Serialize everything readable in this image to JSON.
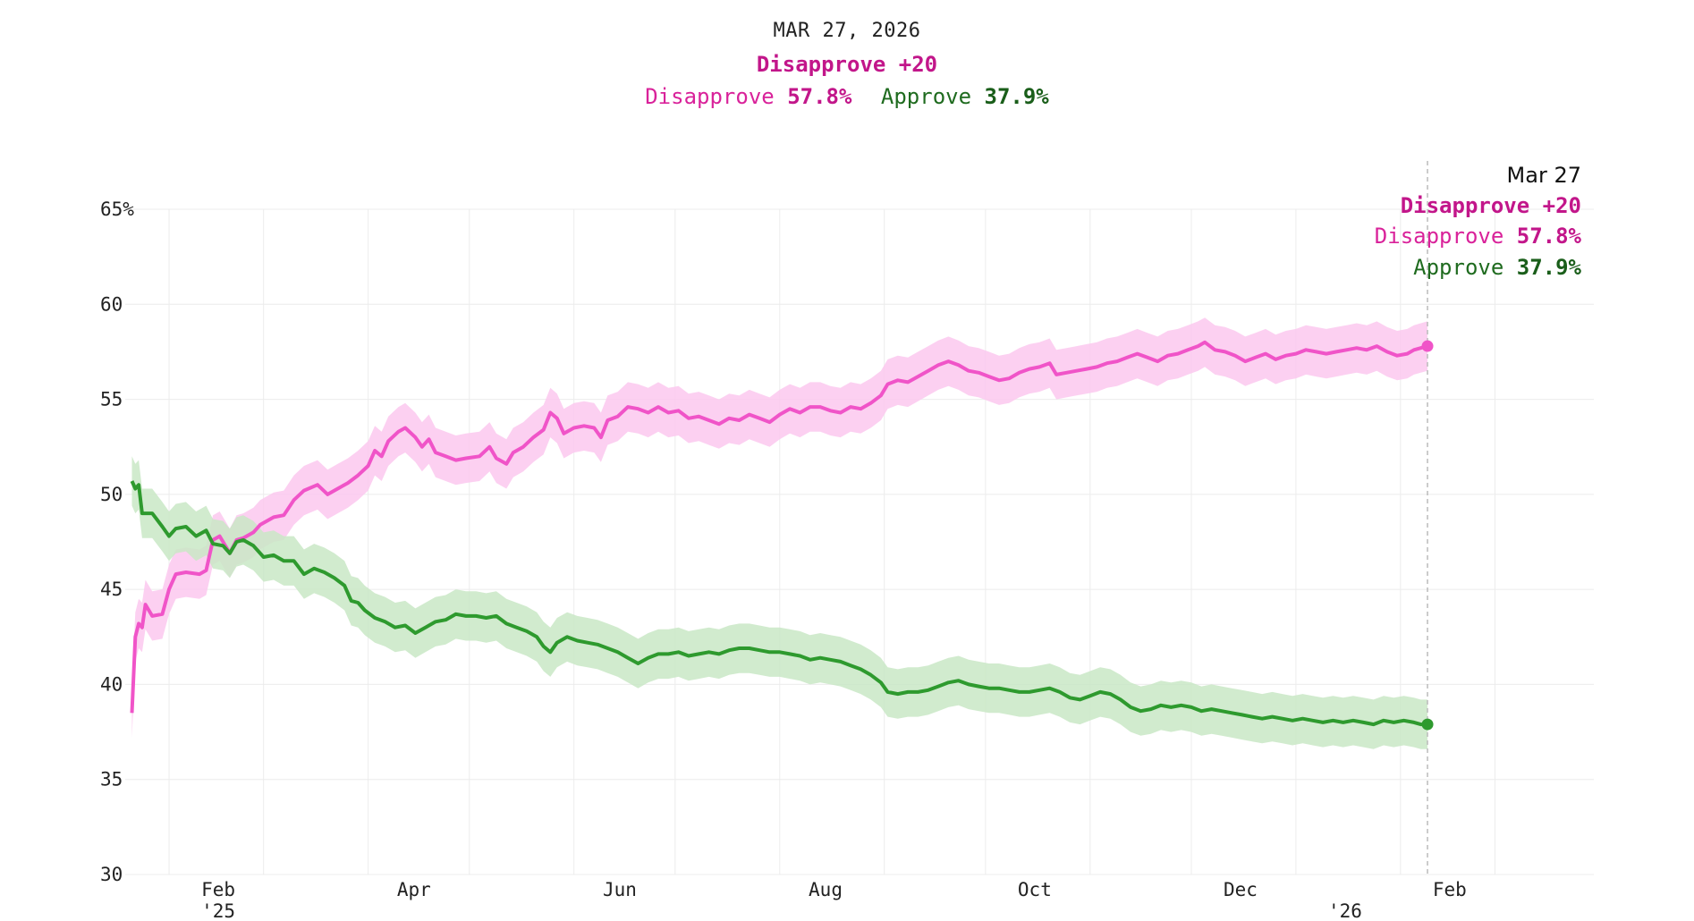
{
  "header": {
    "date": "MAR 27, 2026",
    "net": "Disapprove +20",
    "disapprove_label": "Disapprove",
    "disapprove_value": "57.8%",
    "approve_label": "Approve",
    "approve_value": "37.9%"
  },
  "tooltip": {
    "date": "Mar 27",
    "net": "Disapprove +20",
    "disapprove_label": "Disapprove",
    "disapprove_value": "57.8%",
    "approve_label": "Approve",
    "approve_value": "37.9%"
  },
  "colors": {
    "disapprove": "#f054c8",
    "disapprove_band": "#fbc8ee",
    "approve": "#2e9a2e",
    "approve_band": "#c9e8c5",
    "grid": "#ececec"
  },
  "chart_data": {
    "type": "line",
    "title": "",
    "xlabel": "",
    "ylabel": "",
    "ylim": [
      30,
      65
    ],
    "grid": true,
    "y_ticks": [
      {
        "value": 65,
        "label": "65%"
      },
      {
        "value": 60,
        "label": "60"
      },
      {
        "value": 55,
        "label": "55"
      },
      {
        "value": 50,
        "label": "50"
      },
      {
        "value": 45,
        "label": "45"
      },
      {
        "value": 40,
        "label": "40"
      },
      {
        "value": 35,
        "label": "35"
      },
      {
        "value": 30,
        "label": "30"
      }
    ],
    "x_ticks": [
      {
        "value": 13.0,
        "label": "Feb",
        "sublabel": "'25"
      },
      {
        "value": 71.0,
        "label": "Apr"
      },
      {
        "value": 132.0,
        "label": "Jun"
      },
      {
        "value": 193.0,
        "label": "Aug"
      },
      {
        "value": 255.0,
        "label": "Oct"
      },
      {
        "value": 316.0,
        "label": "Dec"
      },
      {
        "value": 347.0,
        "label": "",
        "sublabel": "'26"
      },
      {
        "value": 378.0,
        "label": "Feb"
      }
    ],
    "x_gridlines": [
      13,
      41,
      72,
      102,
      133,
      163,
      194,
      225,
      255,
      286,
      316,
      347,
      378,
      406
    ],
    "x_range": [
      0,
      430
    ],
    "series": [
      {
        "name": "Disapprove",
        "band_width": 1.3,
        "points": [
          [
            2,
            38.5
          ],
          [
            3,
            42.5
          ],
          [
            4,
            43.2
          ],
          [
            5,
            43.0
          ],
          [
            6,
            44.2
          ],
          [
            8,
            43.6
          ],
          [
            11,
            43.7
          ],
          [
            13,
            45.0
          ],
          [
            15,
            45.8
          ],
          [
            18,
            45.9
          ],
          [
            22,
            45.8
          ],
          [
            24,
            46.0
          ],
          [
            26,
            47.6
          ],
          [
            28,
            47.8
          ],
          [
            29,
            47.5
          ],
          [
            31,
            46.9
          ],
          [
            33,
            47.6
          ],
          [
            35,
            47.7
          ],
          [
            38,
            48.0
          ],
          [
            40,
            48.4
          ],
          [
            44,
            48.8
          ],
          [
            47,
            48.9
          ],
          [
            50,
            49.7
          ],
          [
            53,
            50.2
          ],
          [
            57,
            50.5
          ],
          [
            60,
            50.0
          ],
          [
            63,
            50.3
          ],
          [
            66,
            50.6
          ],
          [
            69,
            51.0
          ],
          [
            72,
            51.5
          ],
          [
            74,
            52.3
          ],
          [
            76,
            52.0
          ],
          [
            78,
            52.8
          ],
          [
            81,
            53.3
          ],
          [
            83,
            53.5
          ],
          [
            86,
            53.0
          ],
          [
            88,
            52.5
          ],
          [
            90,
            52.9
          ],
          [
            92,
            52.2
          ],
          [
            95,
            52.0
          ],
          [
            98,
            51.8
          ],
          [
            101,
            51.9
          ],
          [
            105,
            52.0
          ],
          [
            108,
            52.5
          ],
          [
            110,
            51.9
          ],
          [
            113,
            51.6
          ],
          [
            115,
            52.2
          ],
          [
            118,
            52.5
          ],
          [
            121,
            53.0
          ],
          [
            124,
            53.4
          ],
          [
            126,
            54.3
          ],
          [
            128,
            54.0
          ],
          [
            130,
            53.2
          ],
          [
            133,
            53.5
          ],
          [
            136,
            53.6
          ],
          [
            139,
            53.5
          ],
          [
            141,
            53.0
          ],
          [
            143,
            53.9
          ],
          [
            146,
            54.1
          ],
          [
            149,
            54.6
          ],
          [
            152,
            54.5
          ],
          [
            155,
            54.3
          ],
          [
            158,
            54.6
          ],
          [
            161,
            54.3
          ],
          [
            164,
            54.4
          ],
          [
            167,
            54.0
          ],
          [
            170,
            54.1
          ],
          [
            173,
            53.9
          ],
          [
            176,
            53.7
          ],
          [
            179,
            54.0
          ],
          [
            182,
            53.9
          ],
          [
            185,
            54.2
          ],
          [
            188,
            54.0
          ],
          [
            191,
            53.8
          ],
          [
            194,
            54.2
          ],
          [
            197,
            54.5
          ],
          [
            200,
            54.3
          ],
          [
            203,
            54.6
          ],
          [
            206,
            54.6
          ],
          [
            209,
            54.4
          ],
          [
            212,
            54.3
          ],
          [
            215,
            54.6
          ],
          [
            218,
            54.5
          ],
          [
            221,
            54.8
          ],
          [
            224,
            55.2
          ],
          [
            226,
            55.8
          ],
          [
            229,
            56.0
          ],
          [
            232,
            55.9
          ],
          [
            235,
            56.2
          ],
          [
            238,
            56.5
          ],
          [
            241,
            56.8
          ],
          [
            244,
            57.0
          ],
          [
            247,
            56.8
          ],
          [
            250,
            56.5
          ],
          [
            253,
            56.4
          ],
          [
            256,
            56.2
          ],
          [
            259,
            56.0
          ],
          [
            262,
            56.1
          ],
          [
            265,
            56.4
          ],
          [
            268,
            56.6
          ],
          [
            271,
            56.7
          ],
          [
            274,
            56.9
          ],
          [
            276,
            56.3
          ],
          [
            279,
            56.4
          ],
          [
            282,
            56.5
          ],
          [
            285,
            56.6
          ],
          [
            288,
            56.7
          ],
          [
            291,
            56.9
          ],
          [
            294,
            57.0
          ],
          [
            297,
            57.2
          ],
          [
            300,
            57.4
          ],
          [
            303,
            57.2
          ],
          [
            306,
            57.0
          ],
          [
            309,
            57.3
          ],
          [
            312,
            57.4
          ],
          [
            315,
            57.6
          ],
          [
            318,
            57.8
          ],
          [
            320,
            58.0
          ],
          [
            323,
            57.6
          ],
          [
            326,
            57.5
          ],
          [
            329,
            57.3
          ],
          [
            332,
            57.0
          ],
          [
            335,
            57.2
          ],
          [
            338,
            57.4
          ],
          [
            341,
            57.1
          ],
          [
            344,
            57.3
          ],
          [
            347,
            57.4
          ],
          [
            350,
            57.6
          ],
          [
            353,
            57.5
          ],
          [
            356,
            57.4
          ],
          [
            359,
            57.5
          ],
          [
            362,
            57.6
          ],
          [
            365,
            57.7
          ],
          [
            368,
            57.6
          ],
          [
            371,
            57.8
          ],
          [
            374,
            57.5
          ],
          [
            377,
            57.3
          ],
          [
            380,
            57.4
          ],
          [
            382,
            57.6
          ],
          [
            384,
            57.7
          ],
          [
            386,
            57.8
          ]
        ]
      },
      {
        "name": "Approve",
        "band_width": 1.3,
        "points": [
          [
            2,
            50.7
          ],
          [
            3,
            50.3
          ],
          [
            4,
            50.5
          ],
          [
            5,
            49.0
          ],
          [
            8,
            49.0
          ],
          [
            11,
            48.3
          ],
          [
            13,
            47.8
          ],
          [
            15,
            48.2
          ],
          [
            18,
            48.3
          ],
          [
            21,
            47.8
          ],
          [
            24,
            48.1
          ],
          [
            26,
            47.4
          ],
          [
            29,
            47.3
          ],
          [
            31,
            46.9
          ],
          [
            33,
            47.5
          ],
          [
            35,
            47.6
          ],
          [
            38,
            47.3
          ],
          [
            41,
            46.7
          ],
          [
            44,
            46.8
          ],
          [
            47,
            46.5
          ],
          [
            50,
            46.5
          ],
          [
            53,
            45.8
          ],
          [
            56,
            46.1
          ],
          [
            59,
            45.9
          ],
          [
            62,
            45.6
          ],
          [
            65,
            45.2
          ],
          [
            67,
            44.4
          ],
          [
            69,
            44.3
          ],
          [
            71,
            43.9
          ],
          [
            74,
            43.5
          ],
          [
            77,
            43.3
          ],
          [
            80,
            43.0
          ],
          [
            83,
            43.1
          ],
          [
            86,
            42.7
          ],
          [
            89,
            43.0
          ],
          [
            92,
            43.3
          ],
          [
            95,
            43.4
          ],
          [
            98,
            43.7
          ],
          [
            101,
            43.6
          ],
          [
            104,
            43.6
          ],
          [
            107,
            43.5
          ],
          [
            110,
            43.6
          ],
          [
            113,
            43.2
          ],
          [
            116,
            43.0
          ],
          [
            119,
            42.8
          ],
          [
            122,
            42.5
          ],
          [
            124,
            42.0
          ],
          [
            126,
            41.7
          ],
          [
            128,
            42.2
          ],
          [
            131,
            42.5
          ],
          [
            134,
            42.3
          ],
          [
            137,
            42.2
          ],
          [
            140,
            42.1
          ],
          [
            143,
            41.9
          ],
          [
            146,
            41.7
          ],
          [
            149,
            41.4
          ],
          [
            152,
            41.1
          ],
          [
            155,
            41.4
          ],
          [
            158,
            41.6
          ],
          [
            161,
            41.6
          ],
          [
            164,
            41.7
          ],
          [
            167,
            41.5
          ],
          [
            170,
            41.6
          ],
          [
            173,
            41.7
          ],
          [
            176,
            41.6
          ],
          [
            179,
            41.8
          ],
          [
            182,
            41.9
          ],
          [
            185,
            41.9
          ],
          [
            188,
            41.8
          ],
          [
            191,
            41.7
          ],
          [
            194,
            41.7
          ],
          [
            197,
            41.6
          ],
          [
            200,
            41.5
          ],
          [
            203,
            41.3
          ],
          [
            206,
            41.4
          ],
          [
            209,
            41.3
          ],
          [
            212,
            41.2
          ],
          [
            215,
            41.0
          ],
          [
            218,
            40.8
          ],
          [
            221,
            40.5
          ],
          [
            224,
            40.1
          ],
          [
            226,
            39.6
          ],
          [
            229,
            39.5
          ],
          [
            232,
            39.6
          ],
          [
            235,
            39.6
          ],
          [
            238,
            39.7
          ],
          [
            241,
            39.9
          ],
          [
            244,
            40.1
          ],
          [
            247,
            40.2
          ],
          [
            250,
            40.0
          ],
          [
            253,
            39.9
          ],
          [
            256,
            39.8
          ],
          [
            259,
            39.8
          ],
          [
            262,
            39.7
          ],
          [
            265,
            39.6
          ],
          [
            268,
            39.6
          ],
          [
            271,
            39.7
          ],
          [
            274,
            39.8
          ],
          [
            277,
            39.6
          ],
          [
            280,
            39.3
          ],
          [
            283,
            39.2
          ],
          [
            286,
            39.4
          ],
          [
            289,
            39.6
          ],
          [
            292,
            39.5
          ],
          [
            295,
            39.2
          ],
          [
            298,
            38.8
          ],
          [
            301,
            38.6
          ],
          [
            304,
            38.7
          ],
          [
            307,
            38.9
          ],
          [
            310,
            38.8
          ],
          [
            313,
            38.9
          ],
          [
            316,
            38.8
          ],
          [
            319,
            38.6
          ],
          [
            322,
            38.7
          ],
          [
            325,
            38.6
          ],
          [
            328,
            38.5
          ],
          [
            331,
            38.4
          ],
          [
            334,
            38.3
          ],
          [
            337,
            38.2
          ],
          [
            340,
            38.3
          ],
          [
            343,
            38.2
          ],
          [
            346,
            38.1
          ],
          [
            349,
            38.2
          ],
          [
            352,
            38.1
          ],
          [
            355,
            38.0
          ],
          [
            358,
            38.1
          ],
          [
            361,
            38.0
          ],
          [
            364,
            38.1
          ],
          [
            367,
            38.0
          ],
          [
            370,
            37.9
          ],
          [
            373,
            38.1
          ],
          [
            376,
            38.0
          ],
          [
            379,
            38.1
          ],
          [
            382,
            38.0
          ],
          [
            384,
            37.9
          ],
          [
            386,
            37.9
          ]
        ]
      }
    ],
    "annotation": "Mar 27"
  }
}
